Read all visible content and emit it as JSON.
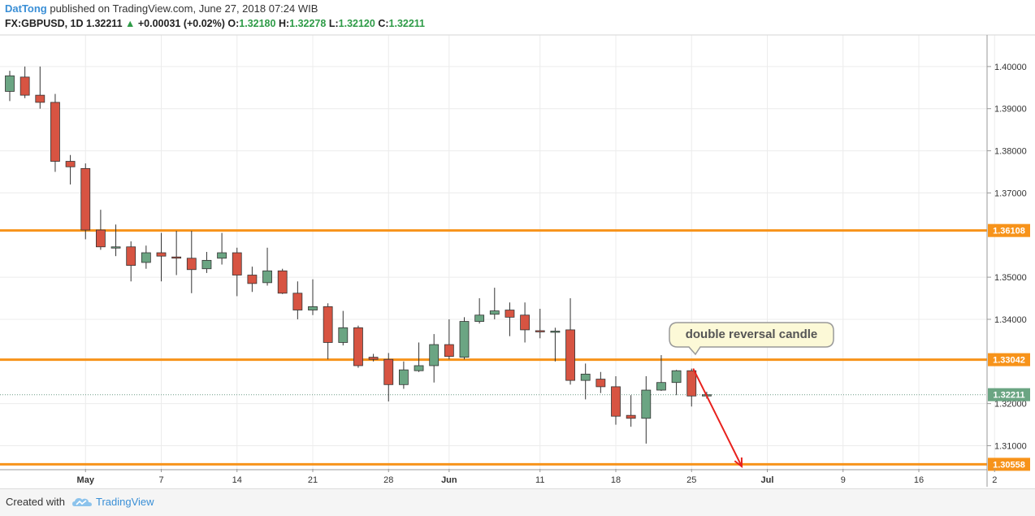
{
  "header": {
    "author": "DatTong",
    "published": "published on TradingView.com, June 27, 2018 07:24 WIB"
  },
  "quote": {
    "symbol": "FX:GBPUSD, 1D",
    "last": "1.32211",
    "change": "+0.00031 (+0.02%)",
    "o_label": "O:",
    "o": "1.32180",
    "h_label": "H:",
    "h": "1.32278",
    "l_label": "L:",
    "l": "1.32120",
    "c_label": "C:",
    "c": "1.32211"
  },
  "annotation": {
    "text": "double reversal candle"
  },
  "footer": {
    "created_with": "Created with",
    "brand": "TradingView"
  },
  "colors": {
    "bull": "#6ba583",
    "bear": "#d75442",
    "level": "#f7931a",
    "arrow": "#e8211d",
    "brand": "#3a8fd6"
  },
  "chart_data": {
    "type": "candlestick",
    "symbol": "FX:GBPUSD",
    "timeframe": "1D",
    "y_axis": {
      "ticks": [
        "1.40000",
        "1.39000",
        "1.38000",
        "1.37000",
        "1.35000",
        "1.34000",
        "1.32000",
        "1.31000"
      ],
      "range": [
        1.3045,
        1.4075
      ]
    },
    "x_axis": {
      "ticks": [
        {
          "label": "May",
          "bar": 5,
          "bold": true
        },
        {
          "label": "7",
          "bar": 10
        },
        {
          "label": "14",
          "bar": 15
        },
        {
          "label": "21",
          "bar": 20
        },
        {
          "label": "28",
          "bar": 25
        },
        {
          "label": "Jun",
          "bar": 29,
          "bold": true
        },
        {
          "label": "11",
          "bar": 35
        },
        {
          "label": "18",
          "bar": 40
        },
        {
          "label": "25",
          "bar": 45
        },
        {
          "label": "Jul",
          "bar": 50,
          "bold": true
        },
        {
          "label": "9",
          "bar": 55
        },
        {
          "label": "16",
          "bar": 60
        },
        {
          "label": "2",
          "bar": 65
        }
      ]
    },
    "levels": [
      {
        "value": 1.36108,
        "label": "1.36108"
      },
      {
        "value": 1.33042,
        "label": "1.33042"
      },
      {
        "value": 1.30558,
        "label": "1.30558"
      }
    ],
    "last_price": {
      "value": 1.32211,
      "label": "1.32211"
    },
    "candles": [
      {
        "o": 1.3941,
        "h": 1.399,
        "l": 1.3918,
        "c": 1.3978
      },
      {
        "o": 1.3975,
        "h": 1.4,
        "l": 1.3925,
        "c": 1.3932
      },
      {
        "o": 1.3932,
        "h": 1.4,
        "l": 1.39,
        "c": 1.3915
      },
      {
        "o": 1.3915,
        "h": 1.3935,
        "l": 1.375,
        "c": 1.3775
      },
      {
        "o": 1.3775,
        "h": 1.379,
        "l": 1.372,
        "c": 1.3762
      },
      {
        "o": 1.3758,
        "h": 1.377,
        "l": 1.359,
        "c": 1.3612
      },
      {
        "o": 1.3612,
        "h": 1.366,
        "l": 1.3565,
        "c": 1.3572
      },
      {
        "o": 1.3572,
        "h": 1.3625,
        "l": 1.355,
        "c": 1.3572
      },
      {
        "o": 1.3572,
        "h": 1.3585,
        "l": 1.349,
        "c": 1.3528
      },
      {
        "o": 1.3535,
        "h": 1.3575,
        "l": 1.352,
        "c": 1.3558
      },
      {
        "o": 1.3558,
        "h": 1.3605,
        "l": 1.349,
        "c": 1.355
      },
      {
        "o": 1.3548,
        "h": 1.361,
        "l": 1.3505,
        "c": 1.3546
      },
      {
        "o": 1.3545,
        "h": 1.361,
        "l": 1.3462,
        "c": 1.3518
      },
      {
        "o": 1.352,
        "h": 1.356,
        "l": 1.351,
        "c": 1.354
      },
      {
        "o": 1.3545,
        "h": 1.3605,
        "l": 1.353,
        "c": 1.3558
      },
      {
        "o": 1.3558,
        "h": 1.357,
        "l": 1.3455,
        "c": 1.3505
      },
      {
        "o": 1.3505,
        "h": 1.3525,
        "l": 1.3465,
        "c": 1.3485
      },
      {
        "o": 1.3487,
        "h": 1.357,
        "l": 1.348,
        "c": 1.3515
      },
      {
        "o": 1.3515,
        "h": 1.352,
        "l": 1.346,
        "c": 1.3462
      },
      {
        "o": 1.3462,
        "h": 1.349,
        "l": 1.34,
        "c": 1.3422
      },
      {
        "o": 1.3422,
        "h": 1.3495,
        "l": 1.341,
        "c": 1.343
      },
      {
        "o": 1.343,
        "h": 1.3438,
        "l": 1.3305,
        "c": 1.3345
      },
      {
        "o": 1.3345,
        "h": 1.342,
        "l": 1.3338,
        "c": 1.338
      },
      {
        "o": 1.338,
        "h": 1.3385,
        "l": 1.3285,
        "c": 1.329
      },
      {
        "o": 1.331,
        "h": 1.3318,
        "l": 1.33,
        "c": 1.3305
      },
      {
        "o": 1.3305,
        "h": 1.332,
        "l": 1.3205,
        "c": 1.3245
      },
      {
        "o": 1.3245,
        "h": 1.33,
        "l": 1.3235,
        "c": 1.328
      },
      {
        "o": 1.3278,
        "h": 1.3345,
        "l": 1.3275,
        "c": 1.329
      },
      {
        "o": 1.329,
        "h": 1.3365,
        "l": 1.325,
        "c": 1.334
      },
      {
        "o": 1.334,
        "h": 1.34,
        "l": 1.3305,
        "c": 1.3312
      },
      {
        "o": 1.331,
        "h": 1.3405,
        "l": 1.3305,
        "c": 1.3395
      },
      {
        "o": 1.3395,
        "h": 1.345,
        "l": 1.339,
        "c": 1.341
      },
      {
        "o": 1.3412,
        "h": 1.3475,
        "l": 1.34,
        "c": 1.342
      },
      {
        "o": 1.3422,
        "h": 1.344,
        "l": 1.336,
        "c": 1.3405
      },
      {
        "o": 1.341,
        "h": 1.344,
        "l": 1.3345,
        "c": 1.3375
      },
      {
        "o": 1.3373,
        "h": 1.3425,
        "l": 1.3355,
        "c": 1.3372
      },
      {
        "o": 1.3372,
        "h": 1.338,
        "l": 1.33,
        "c": 1.3372
      },
      {
        "o": 1.3375,
        "h": 1.345,
        "l": 1.3245,
        "c": 1.3255
      },
      {
        "o": 1.3255,
        "h": 1.3295,
        "l": 1.321,
        "c": 1.327
      },
      {
        "o": 1.3258,
        "h": 1.3275,
        "l": 1.3225,
        "c": 1.324
      },
      {
        "o": 1.324,
        "h": 1.3265,
        "l": 1.315,
        "c": 1.317
      },
      {
        "o": 1.3172,
        "h": 1.322,
        "l": 1.3145,
        "c": 1.3165
      },
      {
        "o": 1.3165,
        "h": 1.3265,
        "l": 1.3105,
        "c": 1.3232
      },
      {
        "o": 1.3232,
        "h": 1.3315,
        "l": 1.323,
        "c": 1.325
      },
      {
        "o": 1.325,
        "h": 1.328,
        "l": 1.322,
        "c": 1.3278
      },
      {
        "o": 1.3278,
        "h": 1.3283,
        "l": 1.3193,
        "c": 1.3218
      },
      {
        "o": 1.3218,
        "h": 1.3228,
        "l": 1.3212,
        "c": 1.3221
      }
    ]
  }
}
